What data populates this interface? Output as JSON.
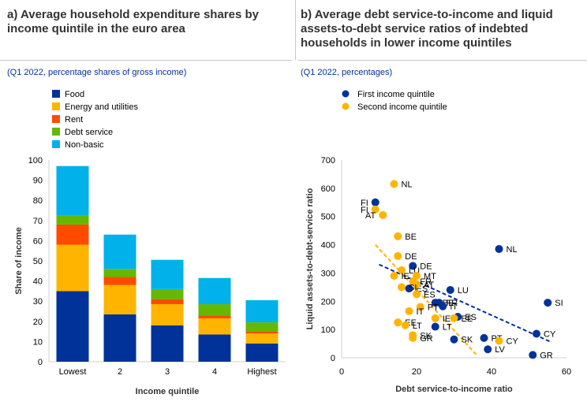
{
  "panel_a": {
    "title": "a) Average household expenditure shares by income quintile in the euro area",
    "subtitle": "(Q1 2022, percentage shares of gross income)"
  },
  "panel_b": {
    "title": "b) Average debt service-to-income and liquid assets-to-debt service ratios of indebted households in lower income quintiles",
    "subtitle": "(Q1 2022, percentages)"
  },
  "chart_data": [
    {
      "type": "bar",
      "stacked": true,
      "categories": [
        "Lowest",
        "2",
        "3",
        "4",
        "Highest"
      ],
      "series": [
        {
          "name": "Food",
          "color": "#003299",
          "values": [
            35,
            23.5,
            18,
            13.5,
            9
          ]
        },
        {
          "name": "Energy and utilities",
          "color": "#FFB400",
          "values": [
            23,
            14.5,
            10.5,
            8,
            5
          ]
        },
        {
          "name": "Rent",
          "color": "#FF4B00",
          "values": [
            10,
            4,
            2.5,
            1.5,
            1
          ]
        },
        {
          "name": "Debt service",
          "color": "#65B800",
          "values": [
            4.5,
            4,
            5,
            5.5,
            4.5
          ]
        },
        {
          "name": "Non-basic",
          "color": "#00B1EA",
          "values": [
            24.5,
            17,
            14.5,
            13,
            11
          ]
        }
      ],
      "title": "",
      "xlabel": "Income quintile",
      "ylabel": "Share of income",
      "ylim": [
        0,
        100
      ],
      "yticks": [
        0,
        10,
        20,
        30,
        40,
        50,
        60,
        70,
        80,
        90,
        100
      ],
      "legend_position": "top-left"
    },
    {
      "type": "scatter",
      "xlabel": "Debt service-to-income ratio",
      "ylabel": "Liquid assets-to-debt-service ratio",
      "xlim": [
        0,
        60
      ],
      "ylim": [
        0,
        700
      ],
      "xticks": [
        0,
        20,
        40,
        60
      ],
      "yticks": [
        0,
        100,
        200,
        300,
        400,
        500,
        600,
        700
      ],
      "legend_position": "top-left",
      "series": [
        {
          "name": "First income quintile",
          "color": "#003299",
          "points": [
            {
              "label": "FI",
              "x": 9,
              "y": 550
            },
            {
              "label": "NL",
              "x": 42,
              "y": 385
            },
            {
              "label": "DE",
              "x": 19,
              "y": 325
            },
            {
              "label": "SI",
              "x": 55,
              "y": 195
            },
            {
              "label": "LU",
              "x": 29,
              "y": 240
            },
            {
              "label": "FR",
              "x": 26,
              "y": 195
            },
            {
              "label": "ES",
              "x": 18,
              "y": 245
            },
            {
              "label": "BE",
              "x": 25,
              "y": 195
            },
            {
              "label": "IT",
              "x": 27,
              "y": 182
            },
            {
              "label": "ES",
              "x": 31,
              "y": 145
            },
            {
              "label": "LT",
              "x": 25,
              "y": 110
            },
            {
              "label": "PT",
              "x": 38,
              "y": 70
            },
            {
              "label": "CY",
              "x": 52,
              "y": 85
            },
            {
              "label": "SK",
              "x": 30,
              "y": 65
            },
            {
              "label": "LV",
              "x": 39,
              "y": 30
            },
            {
              "label": "GR",
              "x": 51,
              "y": 10
            }
          ],
          "trendline": {
            "x": [
              10,
              56
            ],
            "y": [
              330,
              55
            ]
          }
        },
        {
          "name": "Second income quintile",
          "color": "#FFB400",
          "points": [
            {
              "label": "NL",
              "x": 14,
              "y": 615
            },
            {
              "label": "FI",
              "x": 9,
              "y": 525
            },
            {
              "label": "AT",
              "x": 11,
              "y": 505
            },
            {
              "label": "BE",
              "x": 15,
              "y": 430
            },
            {
              "label": "DE",
              "x": 15,
              "y": 360
            },
            {
              "label": "LU",
              "x": 16,
              "y": 310
            },
            {
              "label": "IE",
              "x": 14,
              "y": 290
            },
            {
              "label": "MT",
              "x": 20,
              "y": 290
            },
            {
              "label": "FR",
              "x": 19,
              "y": 270
            },
            {
              "label": "AT",
              "x": 20,
              "y": 260
            },
            {
              "label": "SI",
              "x": 16,
              "y": 250
            },
            {
              "label": "ES",
              "x": 20,
              "y": 225
            },
            {
              "label": "PT",
              "x": 21,
              "y": 180
            },
            {
              "label": "IT",
              "x": 18,
              "y": 165
            },
            {
              "label": "IE",
              "x": 25,
              "y": 140
            },
            {
              "label": "EE",
              "x": 15,
              "y": 125
            },
            {
              "label": "LT",
              "x": 17,
              "y": 115
            },
            {
              "label": "SK",
              "x": 19,
              "y": 80
            },
            {
              "label": "GR",
              "x": 19,
              "y": 70
            },
            {
              "label": "EE",
              "x": 30,
              "y": 140
            },
            {
              "label": "CY",
              "x": 42,
              "y": 60
            }
          ],
          "trendline": {
            "x": [
              9,
              36
            ],
            "y": [
              400,
              10
            ]
          }
        }
      ]
    }
  ]
}
